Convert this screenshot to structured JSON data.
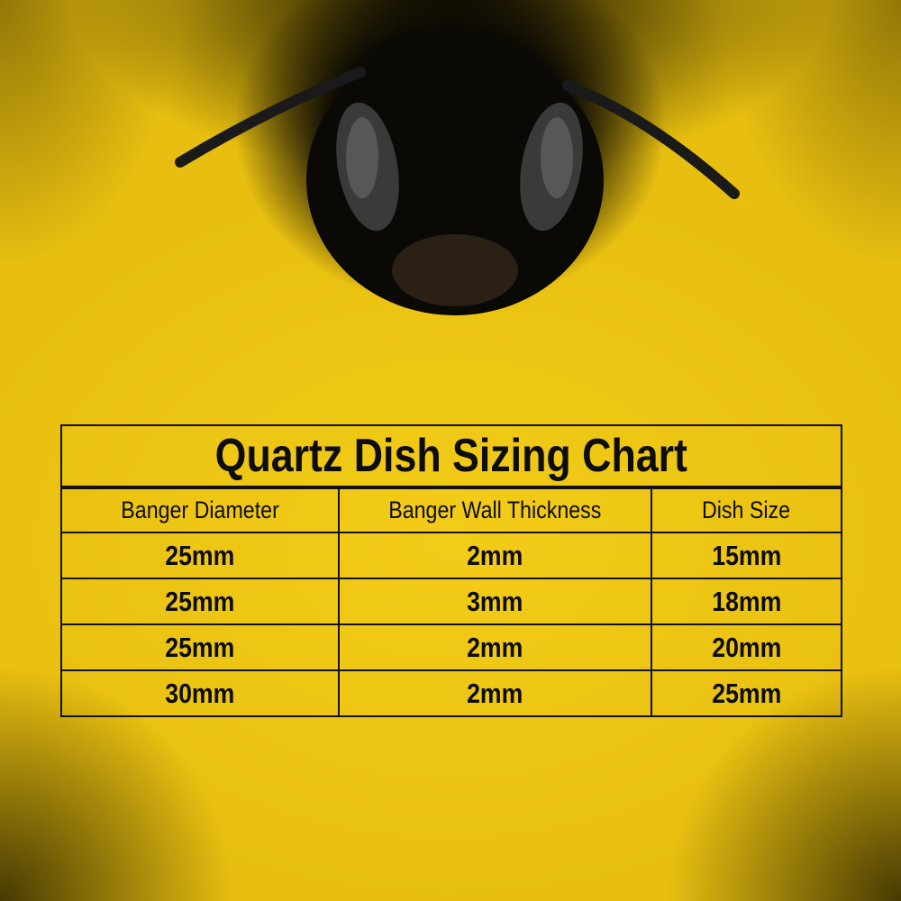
{
  "title": "Quartz Dish Sizing Chart",
  "columns": [
    "Banger Diameter",
    "Banger Wall Thickness",
    "Dish Size"
  ],
  "rows": [
    [
      "25mm",
      "2mm",
      "15mm"
    ],
    [
      "25mm",
      "3mm",
      "18mm"
    ],
    [
      "25mm",
      "2mm",
      "20mm"
    ],
    [
      "30mm",
      "2mm",
      "25mm"
    ]
  ],
  "colors": {
    "background": "#f0c814",
    "text": "#0d0d0d",
    "border": "#111111"
  }
}
